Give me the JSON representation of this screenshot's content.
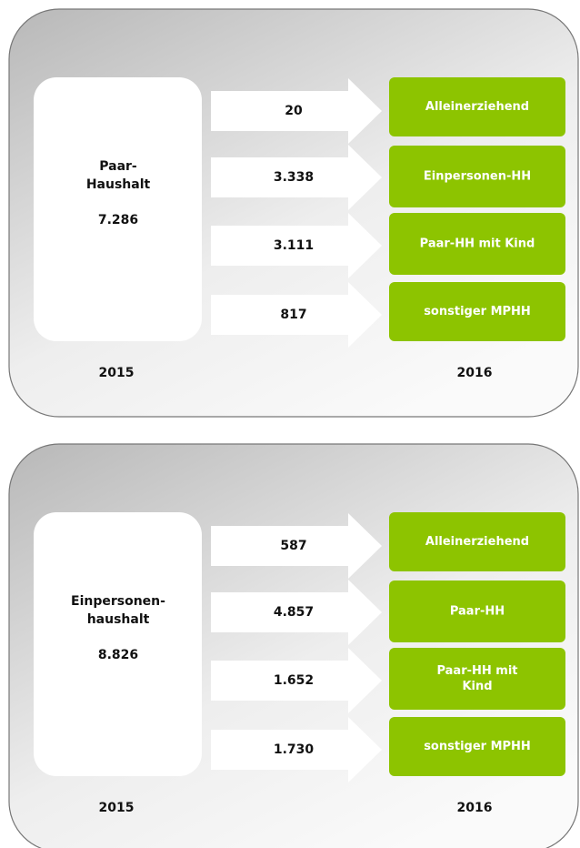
{
  "panels": [
    {
      "source": {
        "label": [
          "Paar-",
          "Haushalt"
        ],
        "value": "7.286"
      },
      "flows": [
        {
          "value": "20",
          "target": [
            "Alleinerziehend"
          ]
        },
        {
          "value": "3.338",
          "target": [
            "Einpersonen-HH"
          ]
        },
        {
          "value": "3.111",
          "target": [
            "Paar-HH mit Kind"
          ]
        },
        {
          "value": "817",
          "target": [
            "sonstiger MPHH"
          ]
        }
      ],
      "year_from": "2015",
      "year_to": "2016"
    },
    {
      "source": {
        "label": [
          "Einpersonen-",
          "haushalt"
        ],
        "value": "8.826"
      },
      "flows": [
        {
          "value": "587",
          "target": [
            "Alleinerziehend"
          ]
        },
        {
          "value": "4.857",
          "target": [
            "Paar-HH"
          ]
        },
        {
          "value": "1.652",
          "target": [
            "Paar-HH mit",
            "Kind"
          ]
        },
        {
          "value": "1.730",
          "target": [
            "sonstiger MPHH"
          ]
        }
      ],
      "year_from": "2015",
      "year_to": "2016"
    }
  ]
}
